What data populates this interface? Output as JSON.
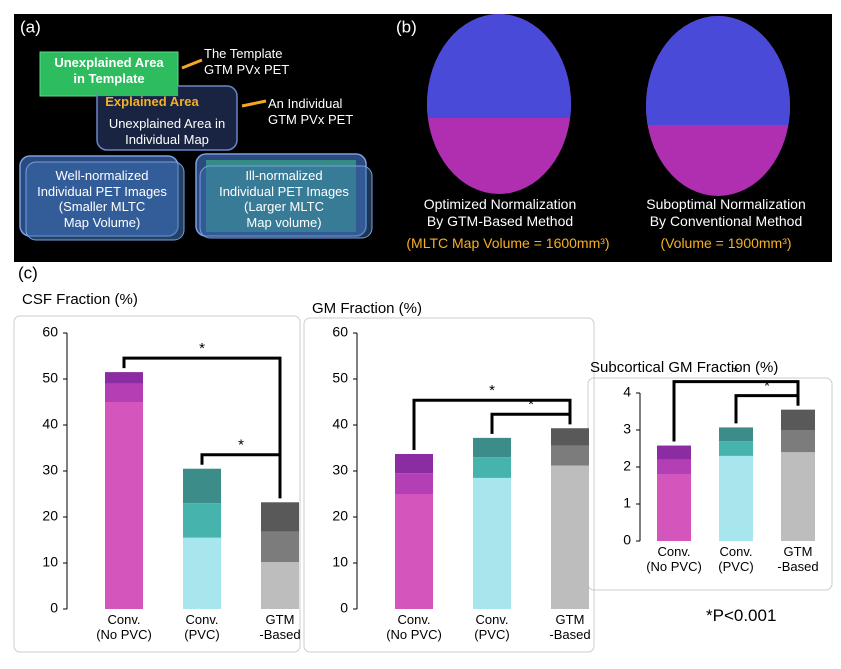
{
  "panel_labels": [
    "(a)",
    "(b)",
    "(c)"
  ],
  "panel_a": {
    "template_area": "Unexplained Area\nin Template",
    "template_label": "The Template\nGTM PVx PET",
    "explained_area": "Explained Area",
    "individual_label": "An Individual\nGTM PVx PET",
    "individual_area": "Unexplained Area in\nIndividual Map",
    "well_normalized": "Well-normalized\nIndividual PET Images\n(Smaller MLTC\nMap Volume)",
    "ill_normalized": "Ill-normalized\nIndividual PET Images\n(Larger MLTC\nMap volume)"
  },
  "panel_b": {
    "optimized": "Optimized Normalization\nBy GTM-Based Method",
    "optimized_volume": "(MLTC Map Volume = 1600mm³)",
    "suboptimal": "Suboptimal Normalization\nBy Conventional Method",
    "suboptimal_volume": "(Volume = 1900mm³)"
  },
  "footnote": "*P<0.001",
  "chart_data": [
    {
      "type": "bar",
      "stacked": true,
      "title": "CSF Fraction (%)",
      "categories": [
        "Conv.\n(No PVC)",
        "Conv.\n(PVC)",
        "GTM\n-Based"
      ],
      "series": [
        {
          "color": [
            "#d455bc",
            "#a8e6ee",
            "#bdbdbd"
          ],
          "values": [
            45,
            15.5,
            10.2
          ]
        },
        {
          "color": [
            "#b43fb4",
            "#46b4ac",
            "#7c7c7c"
          ],
          "values": [
            4,
            7.5,
            6.6
          ]
        },
        {
          "color": [
            "#8c2ca2",
            "#3c8c8a",
            "#595959"
          ],
          "values": [
            2.5,
            7.5,
            6.4
          ]
        }
      ],
      "ylim": [
        0,
        65
      ],
      "yticks": [
        0,
        10,
        20,
        30,
        40,
        50,
        60
      ],
      "annotations": [
        "*",
        "*"
      ]
    },
    {
      "type": "bar",
      "stacked": true,
      "title": "GM Fraction (%)",
      "categories": [
        "Conv.\n(No PVC)",
        "Conv.\n(PVC)",
        "GTM\n-Based"
      ],
      "series": [
        {
          "color": [
            "#d455bc",
            "#a8e6ee",
            "#bdbdbd"
          ],
          "values": [
            25,
            28.5,
            31.2
          ]
        },
        {
          "color": [
            "#b43fb4",
            "#46b4ac",
            "#7c7c7c"
          ],
          "values": [
            4.5,
            4.5,
            4.3
          ]
        },
        {
          "color": [
            "#8c2ca2",
            "#3c8c8a",
            "#595959"
          ],
          "values": [
            4.2,
            4.2,
            3.8
          ]
        }
      ],
      "ylim": [
        0,
        65
      ],
      "yticks": [
        0,
        10,
        20,
        30,
        40,
        50,
        60
      ],
      "annotations": [
        "*",
        "*"
      ]
    },
    {
      "type": "bar",
      "stacked": true,
      "title": "Subcortical GM Fraction (%)",
      "categories": [
        "Conv.\n(No PVC)",
        "Conv.\n(PVC)",
        "GTM\n-Based"
      ],
      "series": [
        {
          "color": [
            "#d455bc",
            "#a8e6ee",
            "#bdbdbd"
          ],
          "values": [
            1.8,
            2.3,
            2.4
          ]
        },
        {
          "color": [
            "#b43fb4",
            "#46b4ac",
            "#7c7c7c"
          ],
          "values": [
            0.4,
            0.4,
            0.6
          ]
        },
        {
          "color": [
            "#8c2ca2",
            "#3c8c8a",
            "#595959"
          ],
          "values": [
            0.38,
            0.37,
            0.55
          ]
        }
      ],
      "ylim": [
        0,
        4.2
      ],
      "yticks": [
        0,
        1,
        2,
        3,
        4
      ],
      "annotations": [
        "*",
        "*"
      ]
    }
  ]
}
